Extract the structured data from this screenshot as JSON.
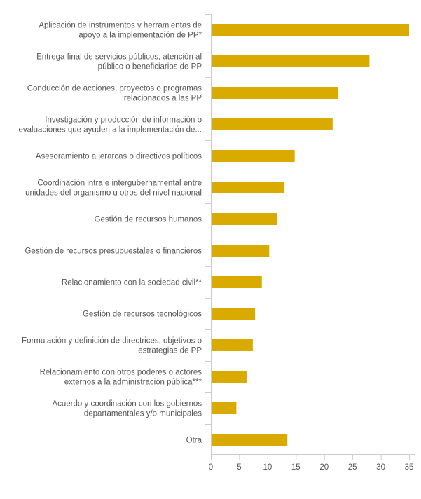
{
  "chart_data": {
    "type": "bar",
    "orientation": "horizontal",
    "bar_color": "#d9aa00",
    "axis_color": "#cccccc",
    "categories": [
      [
        "Aplicación de instrumentos y herramientas de",
        "apoyo a la implementación de PP*"
      ],
      [
        "Entrega final de servicios públicos, atención al",
        "público o beneficiarios de PP"
      ],
      [
        "Conducción de acciones, proyectos o programas",
        "relacionados a las PP"
      ],
      [
        "Investigación y producción de información o",
        "evaluaciones que ayuden a la implementación de..."
      ],
      [
        "Asesoramiento a jerarcas o directivos políticos"
      ],
      [
        "Coordinación intra e intergubernamental entre",
        "unidades del organismo u otros del nivel nacional"
      ],
      [
        "Gestión de recursos humanos"
      ],
      [
        "Gestión de recursos presupuestales o financieros"
      ],
      [
        "Relacionamiento con la sociedad civil**"
      ],
      [
        "Gestión de recursos tecnológicos"
      ],
      [
        "Formulación y definición de directrices, objetivos o",
        "estrategias de PP"
      ],
      [
        "Relacionamiento con otros poderes o actores",
        "externos a la administración pública***"
      ],
      [
        "Acuerdo y coordinación con los gobiernos",
        "departamentales y/o municipales"
      ],
      [
        "Otra"
      ]
    ],
    "values": [
      35,
      28,
      22.5,
      21.5,
      14.8,
      13,
      11.7,
      10.3,
      9,
      7.8,
      7.4,
      6.3,
      4.5,
      13.5
    ],
    "xlim": [
      0,
      35
    ],
    "xticks": [
      "0",
      "5",
      "10",
      "15",
      "20",
      "25",
      "30",
      "35"
    ],
    "grid": false,
    "legend": "none"
  }
}
